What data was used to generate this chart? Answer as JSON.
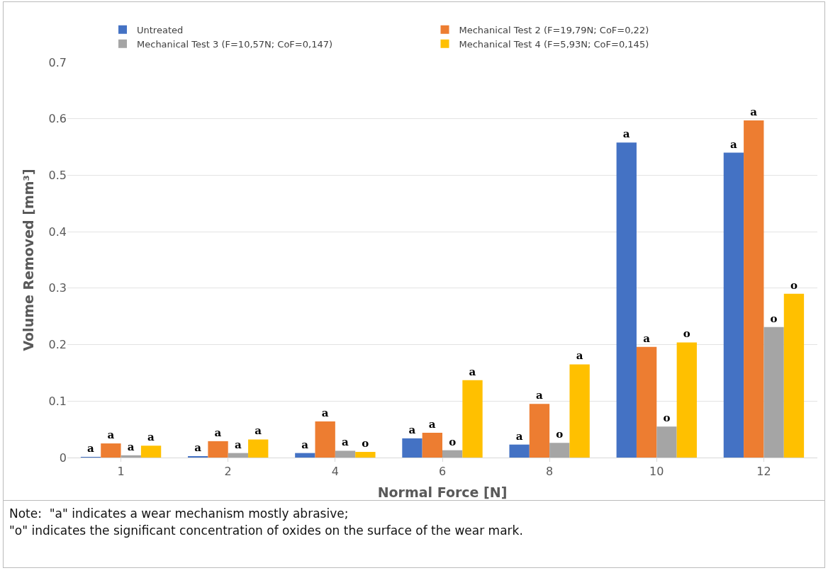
{
  "chart_data": {
    "type": "bar",
    "xlabel": "Normal Force [N]",
    "ylabel": "Volume Removed [mm³]",
    "categories": [
      "1",
      "2",
      "4",
      "6",
      "8",
      "10",
      "12"
    ],
    "series": [
      {
        "name": "Untreated",
        "color": "#4472c4",
        "values": [
          0.001,
          0.002,
          0.008,
          0.034,
          0.023,
          0.558,
          0.54
        ],
        "value_labels": [
          "a",
          "a",
          "a",
          "a",
          "a",
          "a",
          "a"
        ]
      },
      {
        "name": "Mechanical Test 2 (F=19,79N; CoF=0,22)",
        "color": "#ed7d31",
        "values": [
          0.025,
          0.029,
          0.064,
          0.044,
          0.095,
          0.196,
          0.597
        ],
        "value_labels": [
          "a",
          "a",
          "a",
          "a",
          "a",
          "a",
          "a"
        ]
      },
      {
        "name": "Mechanical Test 3 (F=10,57N; CoF=0,147)",
        "color": "#a5a5a5",
        "values": [
          0.004,
          0.008,
          0.012,
          0.013,
          0.026,
          0.055,
          0.231
        ],
        "value_labels": [
          "a",
          "a",
          "a",
          "o",
          "o",
          "o",
          "o"
        ]
      },
      {
        "name": "Mechanical Test 4 (F=5,93N; CoF=0,145)",
        "color": "#ffc000",
        "values": [
          0.021,
          0.032,
          0.01,
          0.137,
          0.165,
          0.204,
          0.29
        ],
        "value_labels": [
          "a",
          "a",
          "o",
          "a",
          "a",
          "o",
          "o"
        ]
      }
    ],
    "ylim": [
      0,
      0.7
    ],
    "yticks": [
      0,
      0.1,
      0.2,
      0.3,
      0.4,
      0.5,
      0.6,
      0.7
    ],
    "grid": "y",
    "legend": "top",
    "annotations": [
      "Note:  \"a\" indicates a wear mechanism mostly abrasive;\n\"o\" indicates the significant concentration of oxides on the surface of the wear mark."
    ]
  }
}
